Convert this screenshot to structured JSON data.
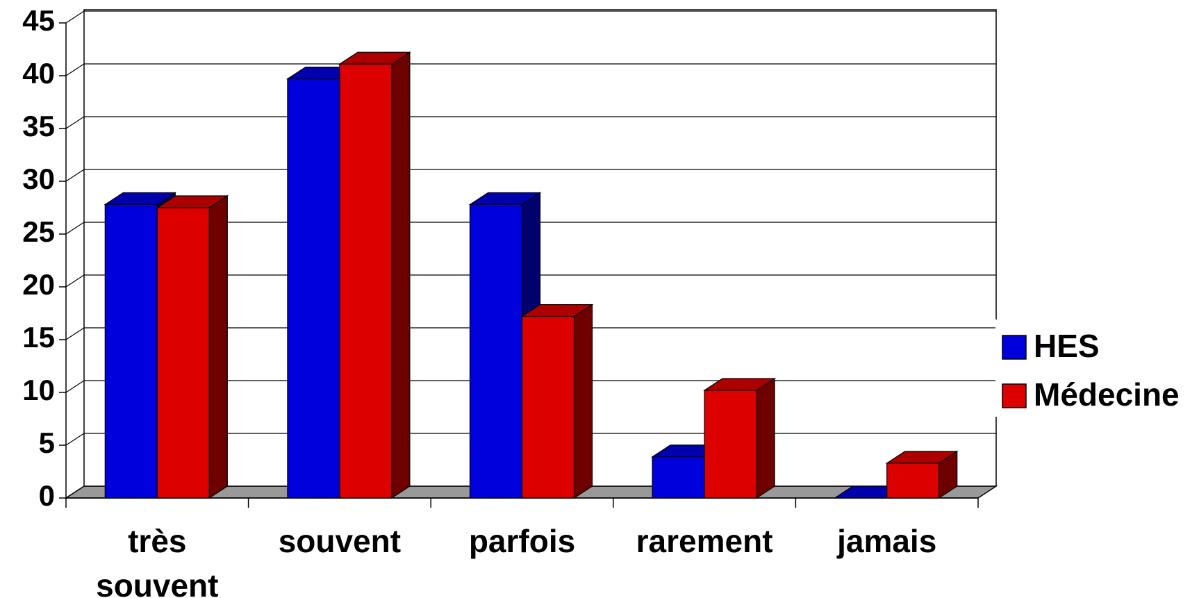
{
  "chart_data": {
    "type": "bar3d",
    "categories": [
      "très souvent",
      "souvent",
      "parfois",
      "rarement",
      "jamais"
    ],
    "series": [
      {
        "name": "HES",
        "color": "#0000dd",
        "values": [
          27.8,
          39.7,
          27.8,
          3.9,
          0
        ]
      },
      {
        "name": "Médecine",
        "color": "#dd0000",
        "values": [
          27.5,
          41.1,
          17.2,
          10.2,
          3.3
        ]
      }
    ],
    "ylim": [
      0,
      45
    ],
    "yticks": [
      0,
      5,
      10,
      15,
      20,
      25,
      30,
      35,
      40,
      45
    ],
    "grid": true,
    "legend": "right"
  }
}
